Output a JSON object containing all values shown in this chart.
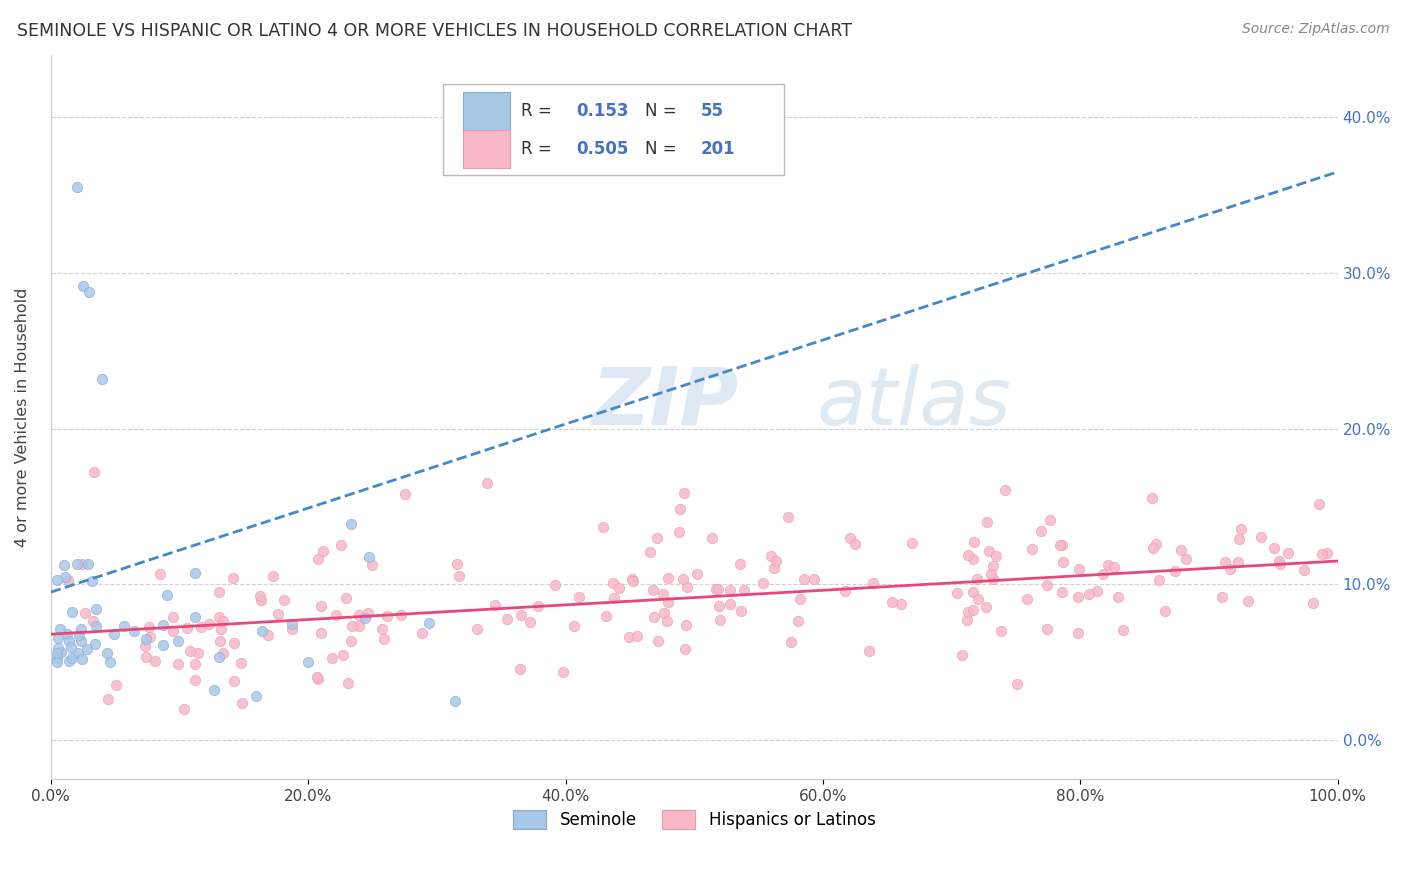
{
  "title": "SEMINOLE VS HISPANIC OR LATINO 4 OR MORE VEHICLES IN HOUSEHOLD CORRELATION CHART",
  "source": "Source: ZipAtlas.com",
  "ylabel": "4 or more Vehicles in Household",
  "watermark_zip": "ZIP",
  "watermark_atlas": "atlas",
  "legend_r_blue": "0.153",
  "legend_n_blue": "55",
  "legend_r_pink": "0.505",
  "legend_n_pink": "201",
  "xlim": [
    0.0,
    1.0
  ],
  "ylim": [
    -0.025,
    0.44
  ],
  "xticks": [
    0.0,
    0.2,
    0.4,
    0.6,
    0.8,
    1.0
  ],
  "xtick_labels": [
    "0.0%",
    "20.0%",
    "40.0%",
    "60.0%",
    "80.0%",
    "100.0%"
  ],
  "yticks": [
    0.0,
    0.1,
    0.2,
    0.3,
    0.4
  ],
  "ytick_labels": [
    "0.0%",
    "10.0%",
    "20.0%",
    "30.0%",
    "40.0%"
  ],
  "blue_color": "#a8c8e8",
  "pink_color": "#f8b8c8",
  "blue_edge": "#88a8d0",
  "pink_edge": "#e898b0",
  "trend_blue_color": "#4488cc",
  "trend_pink_color": "#e84878",
  "background_color": "#ffffff",
  "grid_color": "#cccccc",
  "blue_trend_x": [
    0.0,
    1.0
  ],
  "blue_trend_y": [
    0.095,
    0.365
  ],
  "pink_trend_x": [
    0.0,
    1.0
  ],
  "pink_trend_y": [
    0.068,
    0.115
  ]
}
